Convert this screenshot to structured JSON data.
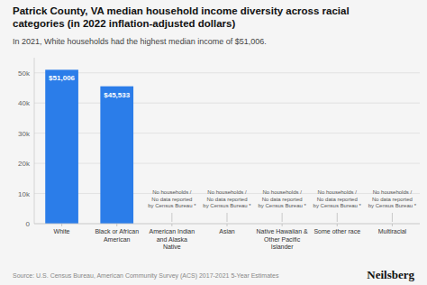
{
  "chart_data": {
    "type": "bar",
    "title": "Patrick County, VA median household income diversity across racial\ncategories (in 2022 inflation-adjusted dollars)",
    "subtitle": "In 2021, White households had the highest median income of $51,006.",
    "source": "Source: U.S. Census Bureau, American Community Survey (ACS) 2017-2021 5-Year Estimates",
    "branding": "Neilsberg",
    "categories": [
      "White",
      "Black or African\nAmerican",
      "American Indian\nand Alaska\nNative",
      "Asian",
      "Native Hawaiian &\nOther Pacific\nIslander",
      "Some other race",
      "Multiracial"
    ],
    "values": [
      51006,
      45533,
      0,
      0,
      0,
      0,
      0
    ],
    "value_labels": [
      "$51,006",
      "$45,533",
      null,
      null,
      null,
      null,
      null
    ],
    "data_labels": true,
    "color": "#2b7de9",
    "annotations": [
      {
        "text": "No households /\nNo data reported\nby Census Bureau *",
        "x": "American Indian\nand Alaska\nNative"
      },
      {
        "text": "No households /\nNo data reported\nby Census Bureau *",
        "x": "Asian"
      },
      {
        "text": "No households /\nNo data reported\nby Census Bureau *",
        "x": "Native Hawaiian &\nOther Pacific\nIslander"
      },
      {
        "text": "No households /\nNo data reported\nby Census Bureau *",
        "x": "Some other race"
      },
      {
        "text": "No households /\nNo data reported\nby Census Bureau *",
        "x": "Multiracial"
      }
    ],
    "ylim": [
      0,
      55000
    ],
    "yticks": [
      0,
      {
        "value": 10000,
        "label": "10k"
      },
      {
        "value": 20000,
        "label": "20k"
      },
      {
        "value": 30000,
        "label": "30k"
      },
      {
        "value": 40000,
        "label": "40k"
      },
      {
        "value": 50000,
        "label": "50k"
      }
    ],
    "grid": true
  }
}
